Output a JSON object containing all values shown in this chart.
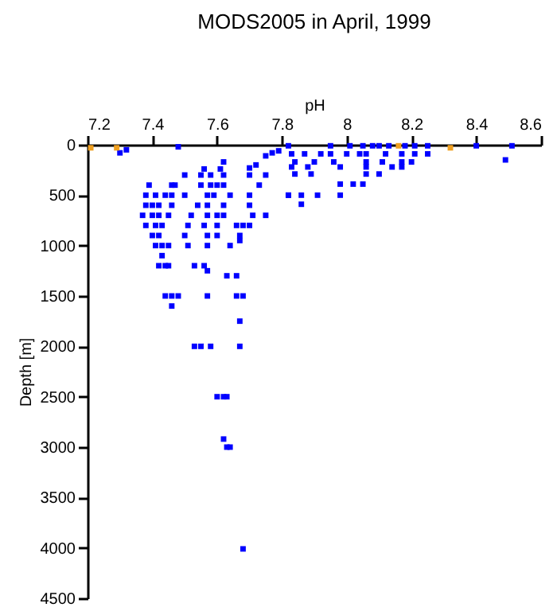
{
  "chart_data": {
    "type": "scatter",
    "title": "MODS2005 in April, 1999",
    "xlabel": "pH",
    "ylabel": "Depth [m]",
    "xlim": [
      7.2,
      8.6
    ],
    "xticks": [
      7.2,
      7.4,
      7.6,
      7.8,
      8,
      8.2,
      8.4,
      8.6
    ],
    "ylim": [
      4500,
      0
    ],
    "yticks": [
      0,
      500,
      1000,
      1500,
      2000,
      2500,
      3000,
      3500,
      4000,
      4500
    ],
    "grid": false,
    "marker": "square",
    "series": [
      {
        "color": "#0000ff",
        "x": [
          7.3,
          7.32,
          7.48,
          7.5,
          7.55,
          7.58,
          7.62,
          7.7,
          7.75,
          7.56,
          7.61,
          7.7,
          7.39,
          7.46,
          7.47,
          7.55,
          7.58,
          7.6,
          7.62,
          7.73,
          7.38,
          7.41,
          7.44,
          7.46,
          7.5,
          7.57,
          7.59,
          7.64,
          7.7,
          7.82,
          7.86,
          7.38,
          7.4,
          7.42,
          7.46,
          7.54,
          7.57,
          7.62,
          7.7,
          7.37,
          7.4,
          7.42,
          7.45,
          7.52,
          7.57,
          7.6,
          7.62,
          7.71,
          7.75,
          7.38,
          7.41,
          7.43,
          7.51,
          7.56,
          7.6,
          7.66,
          7.68,
          7.7,
          7.4,
          7.42,
          7.5,
          7.57,
          7.6,
          7.67,
          7.67,
          7.41,
          7.43,
          7.45,
          7.51,
          7.57,
          7.64,
          7.43,
          7.42,
          7.44,
          7.45,
          7.53,
          7.56,
          7.57,
          7.63,
          7.66,
          7.44,
          7.46,
          7.48,
          7.57,
          7.66,
          7.68,
          7.46,
          7.67,
          7.53,
          7.55,
          7.58,
          7.67,
          7.6,
          7.62,
          7.63,
          7.62,
          7.63,
          7.64,
          7.68,
          7.82,
          7.95,
          8.01,
          8.05,
          8.08,
          8.1,
          8.13,
          8.18,
          8.21,
          8.25,
          8.4,
          8.51,
          7.83,
          7.87,
          7.92,
          7.95,
          8.0,
          8.04,
          8.06,
          8.12,
          8.17,
          8.21,
          8.25,
          7.84,
          7.9,
          7.96,
          8.06,
          8.11,
          8.17,
          8.2,
          8.49,
          7.83,
          7.88,
          7.98,
          8.06,
          8.14,
          8.17,
          7.84,
          7.89,
          8.06,
          8.1,
          7.98,
          8.02,
          8.05,
          7.82,
          7.91,
          7.98,
          7.86,
          7.62,
          7.75,
          7.72,
          7.77,
          7.79
        ],
        "values": [
          80,
          50,
          20,
          300,
          300,
          300,
          300,
          300,
          300,
          240,
          240,
          230,
          400,
          400,
          400,
          400,
          400,
          400,
          400,
          400,
          500,
          500,
          500,
          500,
          500,
          500,
          500,
          500,
          500,
          500,
          500,
          600,
          600,
          600,
          600,
          600,
          600,
          600,
          600,
          700,
          700,
          700,
          700,
          700,
          700,
          700,
          700,
          700,
          700,
          800,
          800,
          800,
          800,
          800,
          800,
          800,
          800,
          800,
          900,
          900,
          900,
          900,
          900,
          900,
          950,
          1000,
          1000,
          1000,
          1000,
          1000,
          1000,
          1100,
          1200,
          1200,
          1200,
          1200,
          1200,
          1250,
          1300,
          1300,
          1500,
          1500,
          1500,
          1500,
          1500,
          1500,
          1600,
          1750,
          2000,
          2000,
          2000,
          2000,
          2500,
          2500,
          2500,
          2920,
          3000,
          3000,
          4010,
          10,
          10,
          10,
          10,
          10,
          10,
          10,
          10,
          10,
          10,
          10,
          10,
          90,
          90,
          90,
          90,
          90,
          90,
          90,
          90,
          90,
          90,
          90,
          170,
          170,
          170,
          170,
          170,
          170,
          170,
          150,
          220,
          220,
          220,
          220,
          220,
          220,
          290,
          290,
          290,
          290,
          390,
          390,
          390,
          500,
          500,
          500,
          590,
          170,
          110,
          200,
          80,
          60
        ]
      },
      {
        "color": "#f0a020",
        "x": [
          7.21,
          7.29,
          8.16,
          8.32
        ],
        "values": [
          30,
          30,
          10,
          30
        ]
      }
    ]
  }
}
